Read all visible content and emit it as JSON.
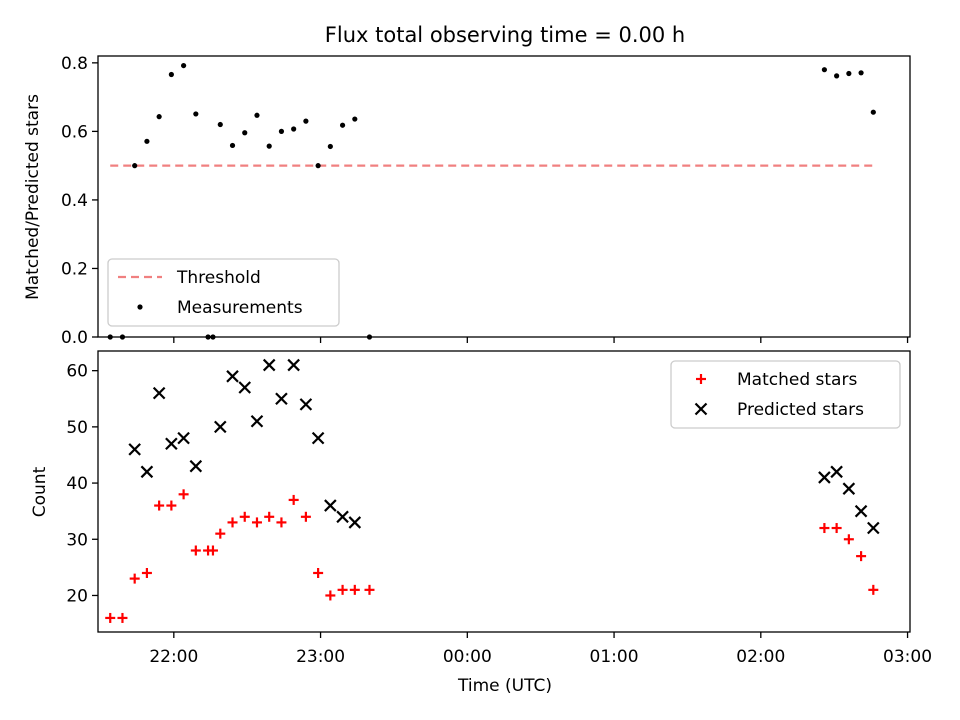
{
  "chart_data": [
    {
      "type": "scatter",
      "title": "Flux total observing time = 0.00 h",
      "xlabel": "",
      "ylabel": "Matched/Predicted stars",
      "ylim": [
        0,
        0.82
      ],
      "yticks": [
        0.0,
        0.2,
        0.4,
        0.6,
        0.8
      ],
      "ytick_labels": [
        "0.0",
        "0.2",
        "0.4",
        "0.6",
        "0.8"
      ],
      "xlim": [
        "21:29",
        "03:01"
      ],
      "xticks": [
        "22:00",
        "23:00",
        "00:00",
        "01:00",
        "02:00",
        "03:00"
      ],
      "legend_position": "lower-left",
      "threshold": {
        "name": "Threshold",
        "color": "#f08080",
        "style": "dashed",
        "x_start": "21:34",
        "x_end": "02:46",
        "y": 0.5
      },
      "series": [
        {
          "name": "Measurements",
          "color": "#000000",
          "marker": "dot",
          "points": [
            [
              "21:34",
              0.0
            ],
            [
              "21:39",
              0.0
            ],
            [
              "21:44",
              0.5
            ],
            [
              "21:49",
              0.571
            ],
            [
              "21:54",
              0.643
            ],
            [
              "21:59",
              0.766
            ],
            [
              "22:04",
              0.792
            ],
            [
              "22:09",
              0.651
            ],
            [
              "22:14",
              0.0
            ],
            [
              "22:16",
              0.0
            ],
            [
              "22:19",
              0.62
            ],
            [
              "22:24",
              0.559
            ],
            [
              "22:29",
              0.596
            ],
            [
              "22:34",
              0.647
            ],
            [
              "22:39",
              0.557
            ],
            [
              "22:44",
              0.6
            ],
            [
              "22:49",
              0.607
            ],
            [
              "22:54",
              0.63
            ],
            [
              "22:59",
              0.5
            ],
            [
              "23:04",
              0.556
            ],
            [
              "23:09",
              0.618
            ],
            [
              "23:14",
              0.636
            ],
            [
              "23:20",
              0.0
            ],
            [
              "02:26",
              0.78
            ],
            [
              "02:31",
              0.762
            ],
            [
              "02:36",
              0.769
            ],
            [
              "02:41",
              0.771
            ],
            [
              "02:46",
              0.656
            ]
          ]
        }
      ]
    },
    {
      "type": "scatter",
      "title": "",
      "xlabel": "Time (UTC)",
      "ylabel": "Count",
      "ylim": [
        13.5,
        63.5
      ],
      "yticks": [
        20,
        30,
        40,
        50,
        60
      ],
      "ytick_labels": [
        "20",
        "30",
        "40",
        "50",
        "60"
      ],
      "xlim": [
        "21:29",
        "03:01"
      ],
      "xticks": [
        "22:00",
        "23:00",
        "00:00",
        "01:00",
        "02:00",
        "03:00"
      ],
      "xtick_labels": [
        "22:00",
        "23:00",
        "00:00",
        "01:00",
        "02:00",
        "03:00"
      ],
      "legend_position": "upper-right",
      "series": [
        {
          "name": "Matched stars",
          "color": "#ff0000",
          "marker": "plus",
          "points": [
            [
              "21:34",
              16
            ],
            [
              "21:39",
              16
            ],
            [
              "21:44",
              23
            ],
            [
              "21:49",
              24
            ],
            [
              "21:54",
              36
            ],
            [
              "21:59",
              36
            ],
            [
              "22:04",
              38
            ],
            [
              "22:09",
              28
            ],
            [
              "22:14",
              28
            ],
            [
              "22:16",
              28
            ],
            [
              "22:19",
              31
            ],
            [
              "22:24",
              33
            ],
            [
              "22:29",
              34
            ],
            [
              "22:34",
              33
            ],
            [
              "22:39",
              34
            ],
            [
              "22:44",
              33
            ],
            [
              "22:49",
              37
            ],
            [
              "22:54",
              34
            ],
            [
              "22:59",
              24
            ],
            [
              "23:04",
              20
            ],
            [
              "23:09",
              21
            ],
            [
              "23:14",
              21
            ],
            [
              "23:20",
              21
            ],
            [
              "02:26",
              32
            ],
            [
              "02:31",
              32
            ],
            [
              "02:36",
              30
            ],
            [
              "02:41",
              27
            ],
            [
              "02:46",
              21
            ]
          ]
        },
        {
          "name": "Predicted stars",
          "color": "#000000",
          "marker": "x",
          "points": [
            [
              "21:44",
              46
            ],
            [
              "21:49",
              42
            ],
            [
              "21:54",
              56
            ],
            [
              "21:59",
              47
            ],
            [
              "22:04",
              48
            ],
            [
              "22:09",
              43
            ],
            [
              "22:19",
              50
            ],
            [
              "22:24",
              59
            ],
            [
              "22:29",
              57
            ],
            [
              "22:34",
              51
            ],
            [
              "22:39",
              61
            ],
            [
              "22:44",
              55
            ],
            [
              "22:49",
              61
            ],
            [
              "22:54",
              54
            ],
            [
              "22:59",
              48
            ],
            [
              "23:04",
              36
            ],
            [
              "23:09",
              34
            ],
            [
              "23:14",
              33
            ],
            [
              "02:26",
              41
            ],
            [
              "02:31",
              42
            ],
            [
              "02:36",
              39
            ],
            [
              "02:41",
              35
            ],
            [
              "02:46",
              32
            ]
          ]
        }
      ]
    }
  ]
}
